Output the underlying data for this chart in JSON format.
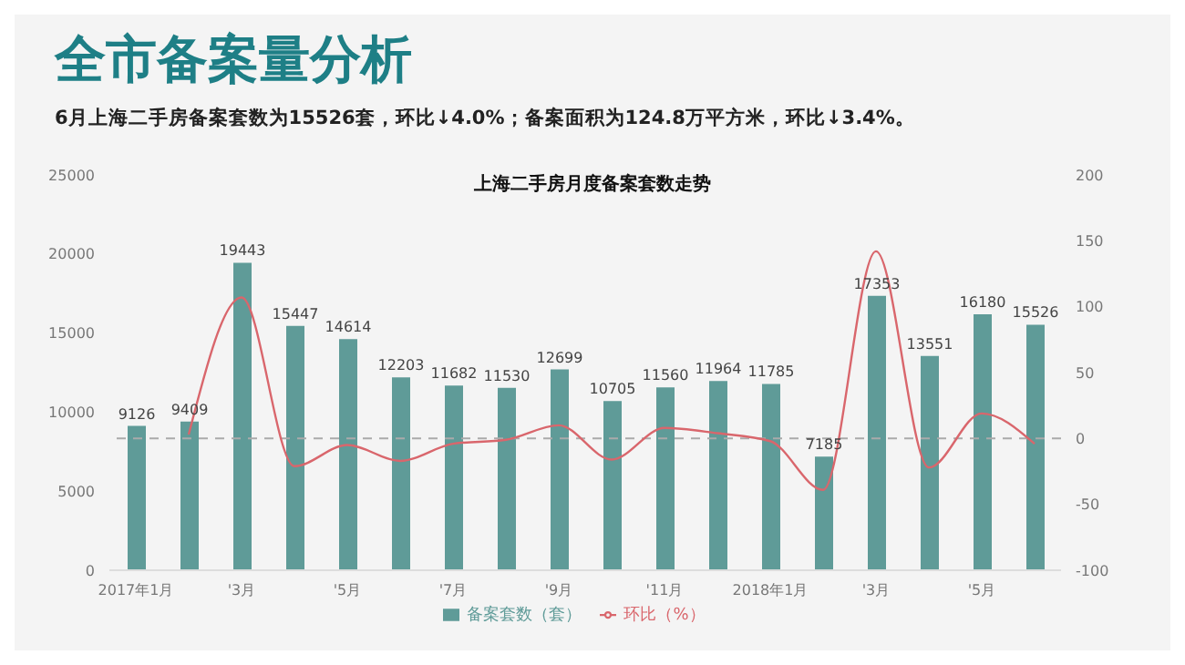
{
  "chart_data": {
    "type": "bar",
    "title": "全市备案量分析",
    "subtitle": "6月上海二手房备案套数为15526套，环比↓4.0%；备案面积为124.8万平方米，环比↓3.4%。",
    "annotations": [
      "上海二手房月度备案套数走势"
    ],
    "categories": [
      "2017年1月",
      null,
      "'3月",
      null,
      "'5月",
      null,
      "'7月",
      null,
      "'9月",
      null,
      "'11月",
      null,
      "2018年1月",
      null,
      "'3月",
      null,
      "'5月",
      null
    ],
    "series": [
      {
        "name": "备案套数（套）",
        "color": "#5f9b98",
        "values": [
          9126,
          9409,
          19443,
          15447,
          14614,
          12203,
          11682,
          11530,
          12699,
          10705,
          11560,
          11964,
          11785,
          7185,
          17353,
          13551,
          16180,
          15526
        ],
        "value_labels": [
          "9126",
          "9409",
          "19443",
          "15447",
          "14614",
          "12203",
          "11682",
          "11530",
          "12699",
          "10705",
          "11560",
          "11964",
          "11785",
          "7185",
          "17353",
          "13551",
          "16180",
          "15526"
        ]
      },
      {
        "name": "环比（%）",
        "type": "line",
        "axis": "y2",
        "color": "#d9666c",
        "values": [
          null,
          3,
          107,
          -21,
          -5,
          -17,
          -4,
          -1,
          10,
          -16,
          8,
          4,
          -2,
          -39,
          142,
          -22,
          19,
          -4
        ]
      }
    ],
    "ylim": [
      0,
      25000
    ],
    "yticks": [
      0,
      5000,
      10000,
      15000,
      20000,
      25000
    ],
    "y2lim": [
      -100,
      200
    ],
    "y2ticks": [
      -100,
      -50,
      0,
      50,
      100,
      150,
      200
    ],
    "ref_lines": [
      {
        "axis": "y2",
        "value": 0,
        "color": "#aaaaaa",
        "line_style": "dashed"
      }
    ],
    "legend": "bottom",
    "grid": false,
    "marker": "none",
    "line_style": "solid"
  }
}
